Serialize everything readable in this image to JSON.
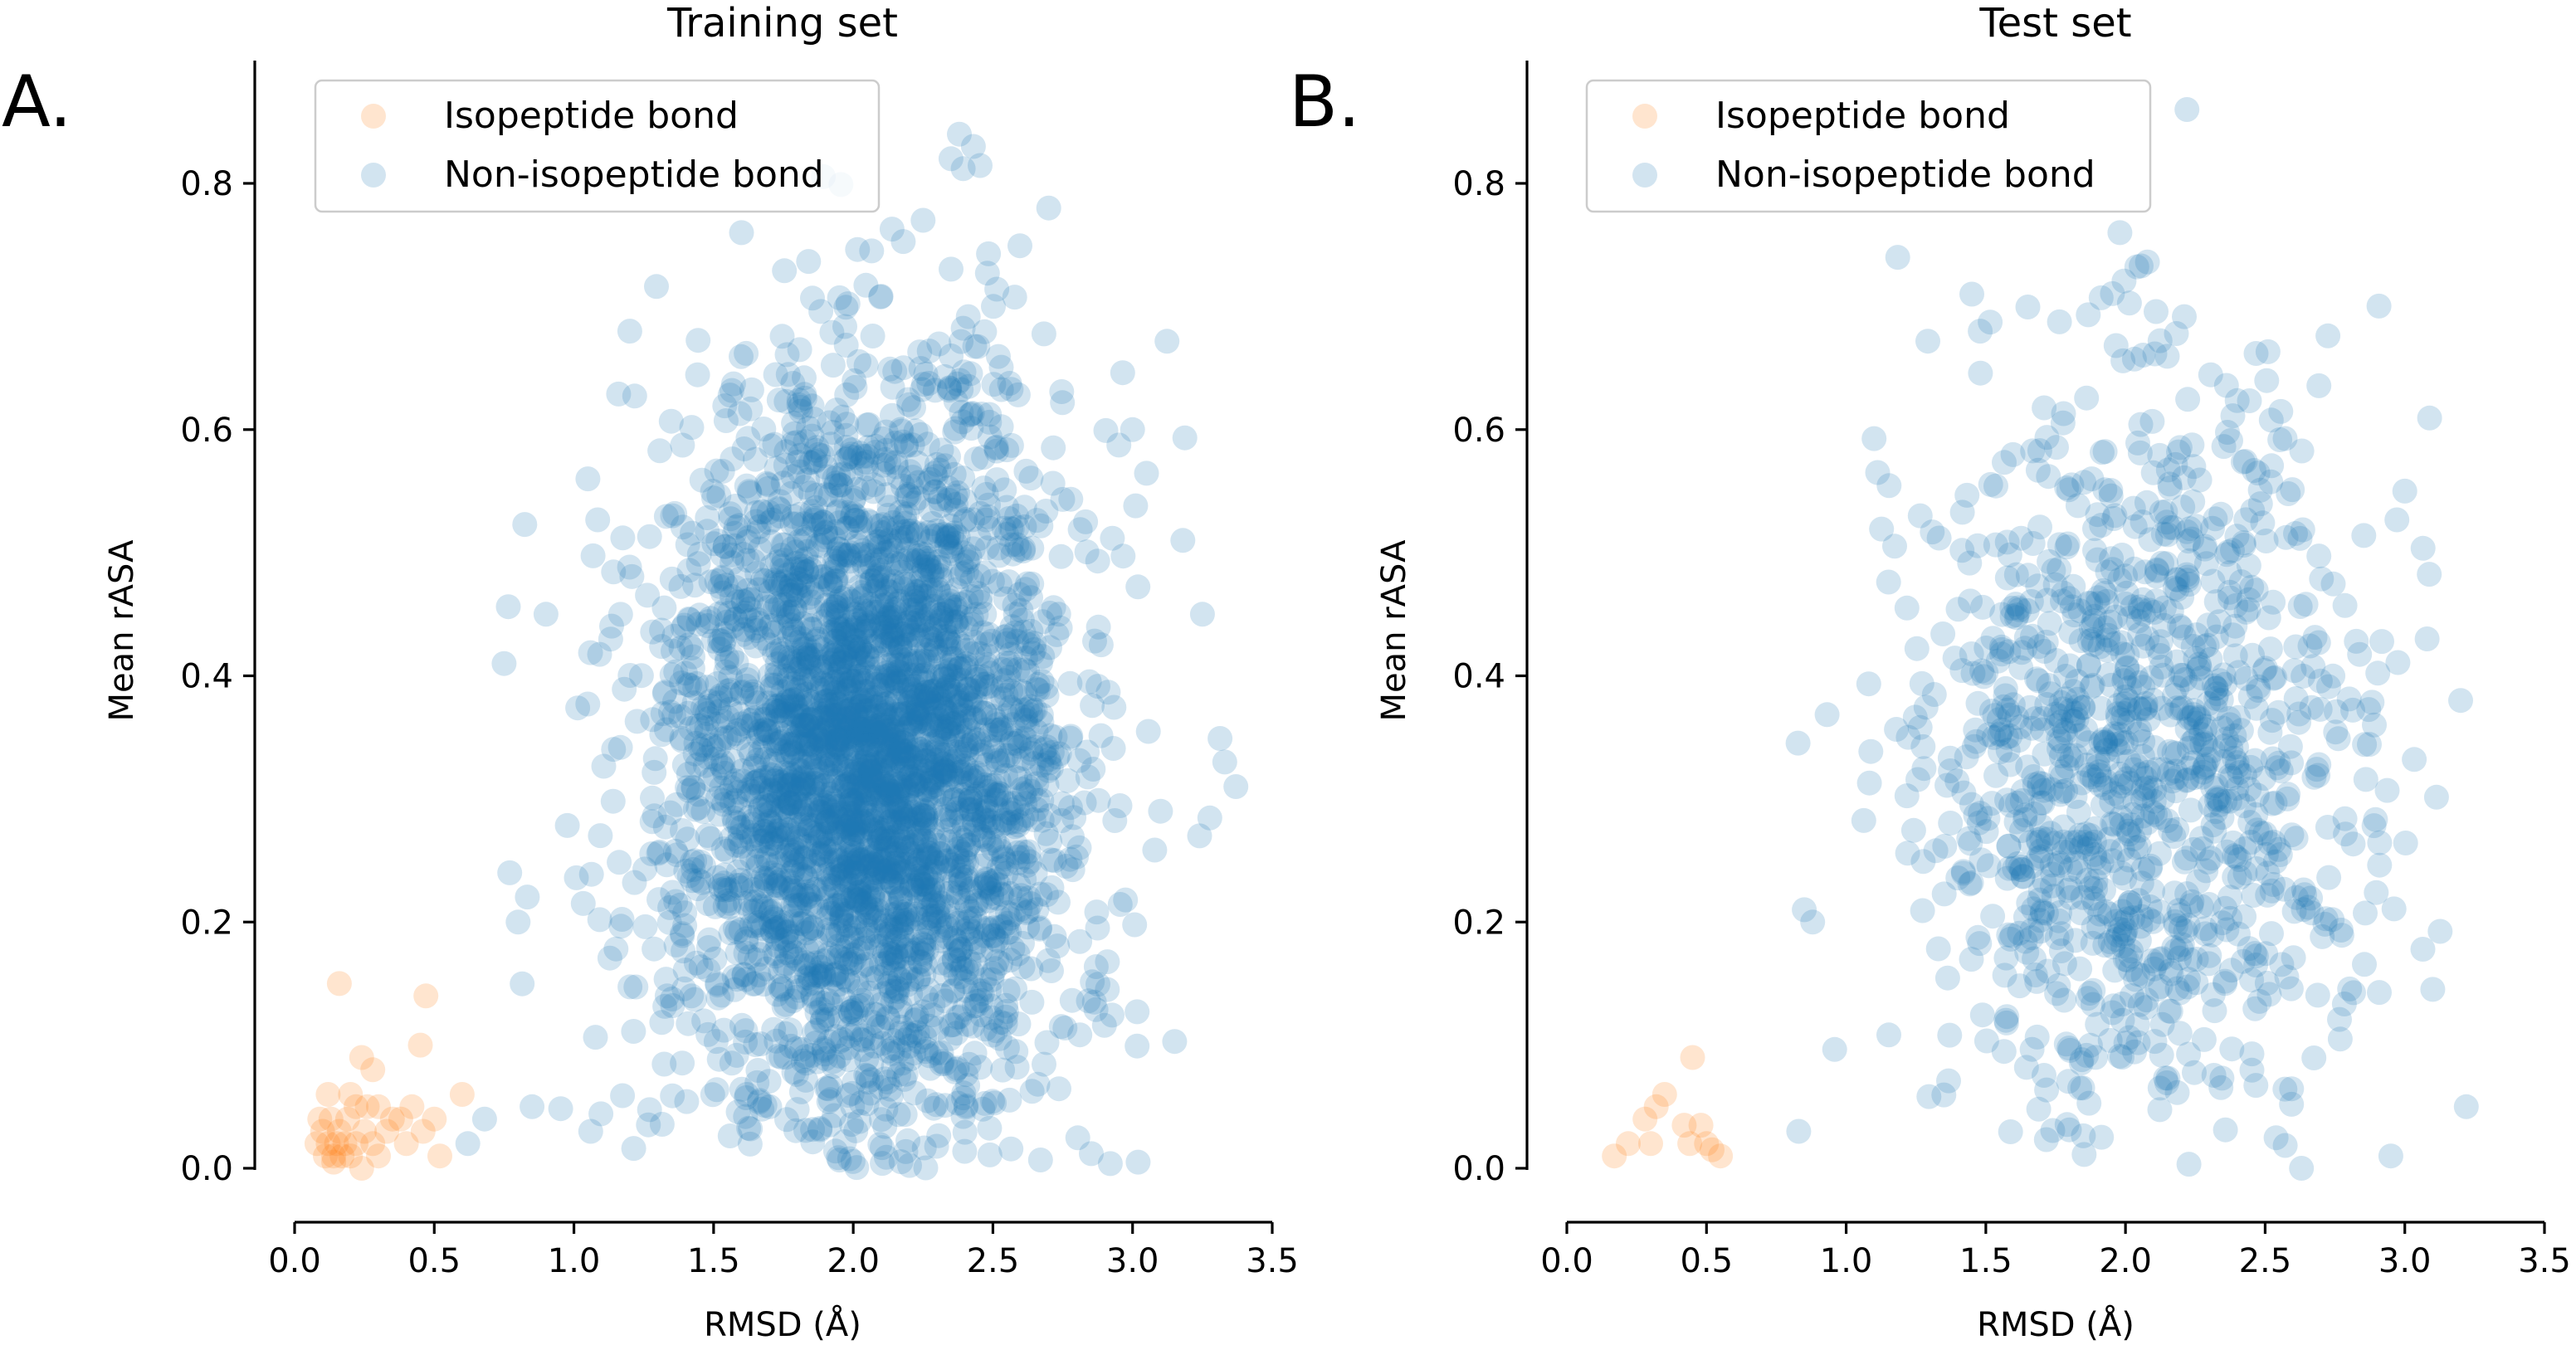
{
  "colors": {
    "isopeptide": "#ff7f0e",
    "non_isopeptide": "#1f77b4",
    "marker_alpha": 0.2
  },
  "panels": [
    {
      "letter": "A.",
      "title": "Training set"
    },
    {
      "letter": "B.",
      "title": "Test set"
    }
  ],
  "chart_data": [
    {
      "type": "scatter",
      "title": "Training set",
      "panel_label": "A.",
      "xlabel": "RMSD (Å)",
      "ylabel": "Mean rASA",
      "xlim": [
        0.0,
        3.5
      ],
      "ylim": [
        0.0,
        0.9
      ],
      "xticks": [
        "0.0",
        "0.5",
        "1.0",
        "1.5",
        "2.0",
        "2.5",
        "3.0",
        "3.5"
      ],
      "yticks": [
        "0.0",
        "0.2",
        "0.4",
        "0.6",
        "0.8"
      ],
      "grid": false,
      "legend": "top-left",
      "series": [
        {
          "name": "Isopeptide bond",
          "color": "#ff7f0e",
          "points": [
            [
              0.16,
              0.15
            ],
            [
              0.47,
              0.14
            ],
            [
              0.24,
              0.09
            ],
            [
              0.28,
              0.08
            ],
            [
              0.45,
              0.1
            ],
            [
              0.6,
              0.06
            ],
            [
              0.22,
              0.05
            ],
            [
              0.35,
              0.04
            ],
            [
              0.5,
              0.04
            ],
            [
              0.46,
              0.03
            ],
            [
              0.52,
              0.01
            ],
            [
              0.1,
              0.03
            ],
            [
              0.12,
              0.02
            ],
            [
              0.14,
              0.01
            ],
            [
              0.16,
              0.03
            ],
            [
              0.18,
              0.02
            ],
            [
              0.2,
              0.01
            ],
            [
              0.08,
              0.02
            ],
            [
              0.13,
              0.04
            ],
            [
              0.19,
              0.04
            ],
            [
              0.25,
              0.03
            ],
            [
              0.28,
              0.02
            ],
            [
              0.3,
              0.01
            ],
            [
              0.15,
              0.02
            ],
            [
              0.11,
              0.01
            ],
            [
              0.22,
              0.02
            ],
            [
              0.17,
              0.01
            ],
            [
              0.09,
              0.04
            ],
            [
              0.26,
              0.05
            ],
            [
              0.33,
              0.03
            ],
            [
              0.4,
              0.02
            ],
            [
              0.2,
              0.06
            ],
            [
              0.42,
              0.05
            ],
            [
              0.14,
              0.005
            ],
            [
              0.24,
              0.0
            ],
            [
              0.12,
              0.06
            ],
            [
              0.3,
              0.05
            ],
            [
              0.38,
              0.04
            ]
          ]
        },
        {
          "name": "Non-isopeptide bond",
          "color": "#1f77b4",
          "generated": {
            "count": 3600,
            "x_mean": 2.05,
            "x_sd": 0.36,
            "y_mean": 0.33,
            "y_sd": 0.15,
            "x_range": [
              0.55,
              3.36
            ],
            "y_range": [
              0.0,
              0.85
            ],
            "seed": 17
          },
          "points": [
            [
              0.75,
              0.41
            ],
            [
              0.9,
              0.45
            ],
            [
              0.77,
              0.24
            ],
            [
              0.62,
              0.02
            ],
            [
              0.68,
              0.04
            ],
            [
              1.06,
              0.03
            ],
            [
              3.25,
              0.45
            ],
            [
              3.33,
              0.33
            ],
            [
              3.37,
              0.31
            ],
            [
              3.24,
              0.27
            ],
            [
              3.1,
              0.29
            ],
            [
              3.02,
              0.005
            ],
            [
              2.38,
              0.84
            ],
            [
              2.43,
              0.83
            ],
            [
              2.35,
              0.82
            ],
            [
              2.25,
              0.77
            ],
            [
              1.6,
              0.76
            ],
            [
              2.7,
              0.78
            ],
            [
              1.2,
              0.68
            ],
            [
              0.8,
              0.2
            ],
            [
              0.85,
              0.05
            ],
            [
              1.05,
              0.56
            ],
            [
              3.18,
              0.51
            ],
            [
              3.0,
              0.6
            ]
          ]
        }
      ]
    },
    {
      "type": "scatter",
      "title": "Test set",
      "panel_label": "B.",
      "xlabel": "RMSD (Å)",
      "ylabel": "Mean rASA",
      "xlim": [
        0.0,
        3.5
      ],
      "ylim": [
        0.0,
        0.9
      ],
      "xticks": [
        "0.0",
        "0.5",
        "1.0",
        "1.5",
        "2.0",
        "2.5",
        "3.0",
        "3.5"
      ],
      "yticks": [
        "0.0",
        "0.2",
        "0.4",
        "0.6",
        "0.8"
      ],
      "grid": false,
      "legend": "top-left",
      "series": [
        {
          "name": "Isopeptide bond",
          "color": "#ff7f0e",
          "points": [
            [
              0.45,
              0.09
            ],
            [
              0.35,
              0.06
            ],
            [
              0.32,
              0.05
            ],
            [
              0.28,
              0.04
            ],
            [
              0.42,
              0.035
            ],
            [
              0.48,
              0.035
            ],
            [
              0.3,
              0.02
            ],
            [
              0.22,
              0.02
            ],
            [
              0.44,
              0.02
            ],
            [
              0.5,
              0.02
            ],
            [
              0.55,
              0.01
            ],
            [
              0.17,
              0.01
            ],
            [
              0.52,
              0.015
            ]
          ]
        },
        {
          "name": "Non-isopeptide bond",
          "color": "#1f77b4",
          "generated": {
            "count": 1150,
            "x_mean": 2.05,
            "x_sd": 0.4,
            "y_mean": 0.33,
            "y_sd": 0.16,
            "x_range": [
              0.78,
              3.22
            ],
            "y_range": [
              0.0,
              0.74
            ],
            "seed": 29
          },
          "points": [
            [
              2.22,
              0.86
            ],
            [
              1.98,
              0.76
            ],
            [
              3.2,
              0.38
            ],
            [
              3.22,
              0.05
            ],
            [
              2.95,
              0.01
            ],
            [
              2.63,
              0.0
            ],
            [
              0.85,
              0.21
            ],
            [
              0.88,
              0.2
            ],
            [
              0.83,
              0.03
            ],
            [
              1.45,
              0.71
            ],
            [
              1.48,
              0.68
            ],
            [
              3.0,
              0.55
            ],
            [
              3.08,
              0.43
            ]
          ]
        }
      ]
    }
  ]
}
